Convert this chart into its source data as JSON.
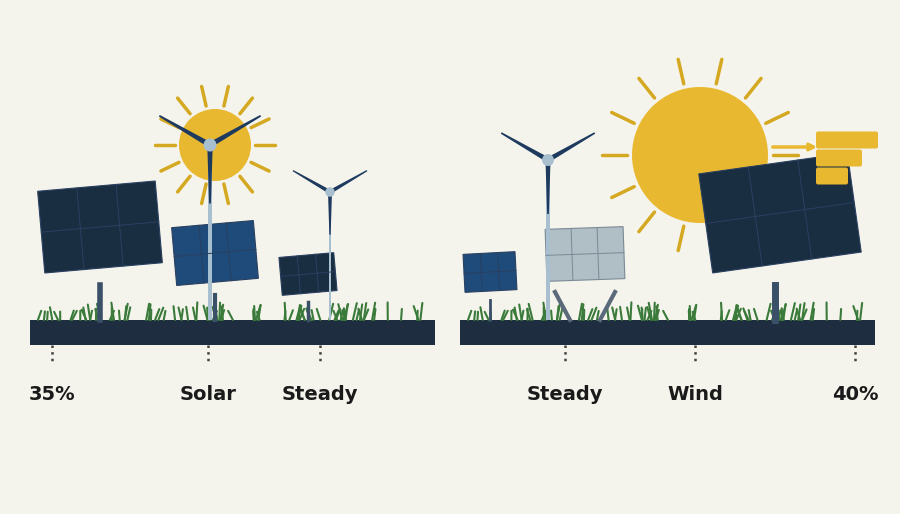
{
  "bg_color": "#f5f4ec",
  "ground_color": "#1e2d40",
  "grass_color": "#3a7a3a",
  "panel_dark": "#1a2e42",
  "panel_blue": "#1e4b7a",
  "panel_light": "#b0bec5",
  "turbine_dark": "#1e3a5f",
  "turbine_light": "#a8bfd0",
  "sun_gold": "#e8b830",
  "sun_ray": "#d4a820",
  "text_color": "#1a1a1a",
  "labels_left": [
    "35%",
    "Solar",
    "Steady"
  ],
  "labels_right": [
    "Steady",
    "Wind",
    "40%"
  ],
  "font_size": 14
}
